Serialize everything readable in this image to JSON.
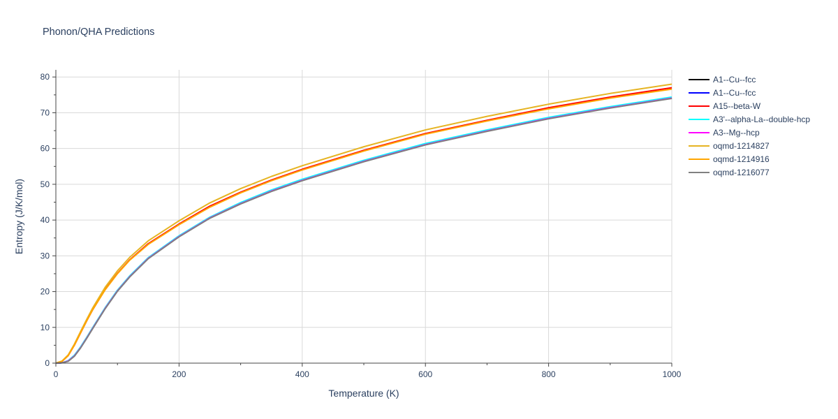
{
  "chart_data": {
    "type": "line",
    "title": "Phonon/QHA Predictions",
    "xlabel": "Temperature (K)",
    "ylabel": "Entropy (J/K/mol)",
    "xlim": [
      0,
      1000
    ],
    "ylim": [
      0,
      82
    ],
    "xticks": [
      0,
      200,
      400,
      600,
      800,
      1000
    ],
    "yticks": [
      0,
      10,
      20,
      30,
      40,
      50,
      60,
      70,
      80
    ],
    "grid": true,
    "legend_position": "right",
    "x": [
      0,
      10,
      20,
      30,
      40,
      50,
      60,
      80,
      100,
      120,
      150,
      200,
      250,
      300,
      350,
      400,
      500,
      600,
      700,
      800,
      900,
      1000
    ],
    "series": [
      {
        "name": "A1--Cu--fcc",
        "color": "#000000",
        "values": [
          0,
          0.1,
          0.6,
          2.0,
          4.3,
          7.0,
          9.8,
          15.3,
          20.2,
          24.2,
          29.3,
          35.4,
          40.6,
          44.6,
          48.1,
          51.1,
          56.4,
          61.1,
          64.9,
          68.4,
          71.4,
          74.1
        ]
      },
      {
        "name": "A1--Cu--fcc",
        "color": "#0000ff",
        "values": [
          0,
          0.1,
          0.6,
          2.0,
          4.3,
          7.0,
          9.8,
          15.3,
          20.2,
          24.2,
          29.3,
          35.4,
          40.6,
          44.6,
          48.1,
          51.1,
          56.4,
          61.1,
          64.9,
          68.4,
          71.4,
          74.1
        ]
      },
      {
        "name": "A15--beta-W",
        "color": "#ff0000",
        "values": [
          0,
          0.5,
          2.1,
          5.0,
          8.4,
          11.8,
          15.0,
          20.6,
          25.1,
          28.9,
          33.4,
          38.9,
          43.9,
          47.8,
          51.2,
          54.2,
          59.5,
          64.2,
          67.9,
          71.4,
          74.4,
          77.0
        ]
      },
      {
        "name": "A3'--alpha-La--double-hcp",
        "color": "#00ffff",
        "values": [
          0,
          0.1,
          0.7,
          2.2,
          4.5,
          7.2,
          10.0,
          15.5,
          20.4,
          24.4,
          29.5,
          35.6,
          40.8,
          44.9,
          48.4,
          51.4,
          56.7,
          61.4,
          65.2,
          68.7,
          71.7,
          74.4
        ]
      },
      {
        "name": "A3--Mg--hcp",
        "color": "#ff00ff",
        "values": [
          0,
          0.1,
          0.6,
          2.0,
          4.3,
          7.0,
          9.8,
          15.3,
          20.2,
          24.2,
          29.3,
          35.4,
          40.6,
          44.6,
          48.1,
          51.1,
          56.4,
          61.1,
          64.9,
          68.4,
          71.4,
          74.1
        ]
      },
      {
        "name": "oqmd-1214827",
        "color": "#e6b422",
        "values": [
          0,
          0.6,
          2.3,
          5.3,
          8.8,
          12.2,
          15.5,
          21.2,
          25.8,
          29.6,
          34.2,
          39.8,
          44.8,
          48.8,
          52.2,
          55.2,
          60.5,
          65.2,
          69.0,
          72.4,
          75.4,
          78.0
        ]
      },
      {
        "name": "oqmd-1214916",
        "color": "#ffa500",
        "values": [
          0,
          0.5,
          2.1,
          5.0,
          8.4,
          11.8,
          15.0,
          20.5,
          25.0,
          28.8,
          33.2,
          38.7,
          43.6,
          47.6,
          51.0,
          54.0,
          59.3,
          64.0,
          67.7,
          71.1,
          74.1,
          76.6
        ]
      },
      {
        "name": "oqmd-1216077",
        "color": "#808080",
        "values": [
          0,
          0.1,
          0.5,
          1.9,
          4.2,
          6.9,
          9.7,
          15.2,
          20.1,
          24.1,
          29.2,
          35.3,
          40.5,
          44.5,
          48.0,
          51.0,
          56.3,
          61.0,
          64.8,
          68.3,
          71.3,
          74.0
        ]
      }
    ]
  }
}
